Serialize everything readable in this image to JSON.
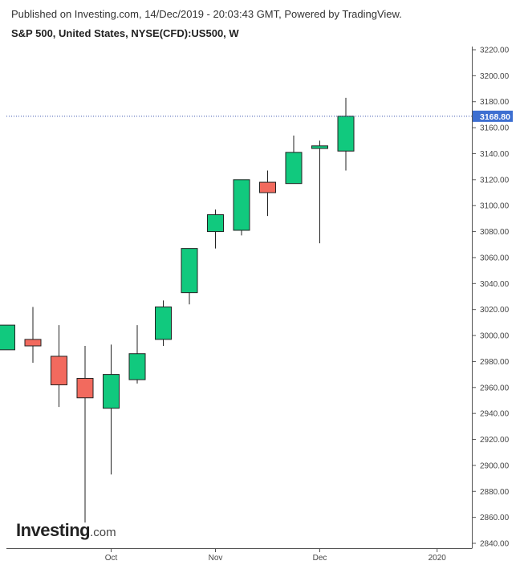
{
  "header": {
    "published": "Published on Investing.com, 14/Dec/2019 - 20:03:43 GMT, Powered by TradingView.",
    "instrument": "S&P 500, United States, NYSE(CFD):US500, W"
  },
  "logo": {
    "main": "Investing",
    "suffix": ".com"
  },
  "colors": {
    "up": "#11c97e",
    "down": "#f26a5e",
    "last_price_bg": "#3d6fd1",
    "last_price_line": "#3d56b0"
  },
  "chart_data": {
    "type": "candlestick",
    "title": "S&P 500, United States, NYSE(CFD):US500, W",
    "ylim": [
      2835,
      3224
    ],
    "y_ticks": [
      2840,
      2860,
      2880,
      2900,
      2920,
      2940,
      2960,
      2980,
      3000,
      3020,
      3040,
      3060,
      3080,
      3100,
      3120,
      3140,
      3160,
      3180,
      3200,
      3220
    ],
    "y_tick_labels": [
      "2840.00",
      "2860.00",
      "2880.00",
      "2900.00",
      "2920.00",
      "2940.00",
      "2960.00",
      "2980.00",
      "3000.00",
      "3020.00",
      "3040.00",
      "3060.00",
      "3080.00",
      "3100.00",
      "3120.00",
      "3140.00",
      "3160.00",
      "3180.00",
      "3200.00",
      "3220.00"
    ],
    "x_labels": [
      {
        "label": "Oct",
        "index": 4
      },
      {
        "label": "Nov",
        "index": 8
      },
      {
        "label": "Dec",
        "index": 12
      },
      {
        "label": "2020",
        "index": 16.5
      }
    ],
    "last_price": 3168.8,
    "last_price_label": "3168.80",
    "candles": [
      {
        "open": 2989,
        "high": 3008,
        "low": 2989,
        "close": 3008
      },
      {
        "open": 2997,
        "high": 3022,
        "low": 2979,
        "close": 2992
      },
      {
        "open": 2984,
        "high": 3008,
        "low": 2945,
        "close": 2962
      },
      {
        "open": 2967,
        "high": 2992,
        "low": 2856,
        "close": 2952
      },
      {
        "open": 2944,
        "high": 2993,
        "low": 2893,
        "close": 2970
      },
      {
        "open": 2966,
        "high": 3008,
        "low": 2963,
        "close": 2986
      },
      {
        "open": 2997,
        "high": 3027,
        "low": 2992,
        "close": 3022
      },
      {
        "open": 3033,
        "high": 3067,
        "low": 3024,
        "close": 3067
      },
      {
        "open": 3080,
        "high": 3097,
        "low": 3067,
        "close": 3093
      },
      {
        "open": 3081,
        "high": 3120,
        "low": 3077,
        "close": 3120
      },
      {
        "open": 3118,
        "high": 3127,
        "low": 3092,
        "close": 3110
      },
      {
        "open": 3117,
        "high": 3154,
        "low": 3117,
        "close": 3141
      },
      {
        "open": 3144,
        "high": 3150,
        "low": 3071,
        "close": 3146
      },
      {
        "open": 3142,
        "high": 3183,
        "low": 3127,
        "close": 3168.8
      }
    ]
  }
}
